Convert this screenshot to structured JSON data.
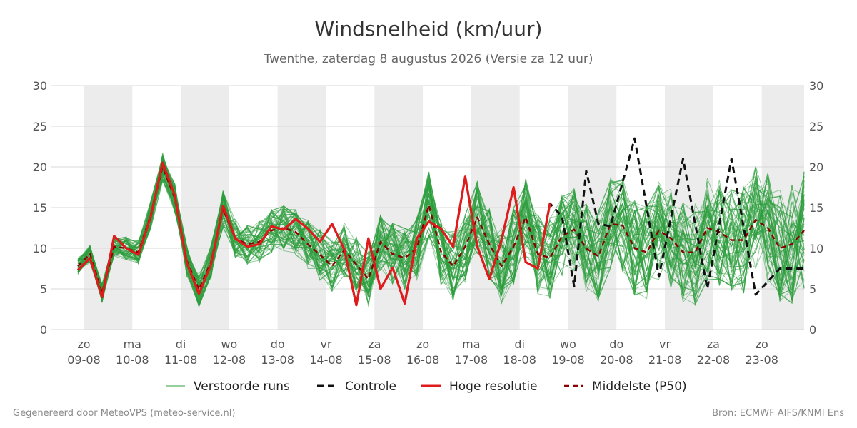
{
  "chart_data": {
    "type": "line",
    "title": "Windsnelheid (km/uur)",
    "subtitle": "Twenthe, zaterdag  8 augustus 2026 (Versie za 12 uur)",
    "ylim": [
      0,
      30
    ],
    "yticks": [
      0,
      5,
      10,
      15,
      20,
      25,
      30
    ],
    "grid": true,
    "x_start_date": "2026-08-08T21:00",
    "x_end_date": "2026-08-23T21:00",
    "day_labels": [
      {
        "day": "zo",
        "date": "09-08"
      },
      {
        "day": "ma",
        "date": "10-08"
      },
      {
        "day": "di",
        "date": "11-08"
      },
      {
        "day": "wo",
        "date": "12-08"
      },
      {
        "day": "do",
        "date": "13-08"
      },
      {
        "day": "vr",
        "date": "14-08"
      },
      {
        "day": "za",
        "date": "15-08"
      },
      {
        "day": "zo",
        "date": "16-08"
      },
      {
        "day": "ma",
        "date": "17-08"
      },
      {
        "day": "di",
        "date": "18-08"
      },
      {
        "day": "wo",
        "date": "19-08"
      },
      {
        "day": "do",
        "date": "20-08"
      },
      {
        "day": "vr",
        "date": "21-08"
      },
      {
        "day": "za",
        "date": "22-08"
      },
      {
        "day": "zo",
        "date": "23-08"
      }
    ],
    "night_shading": true,
    "legend": [
      "Verstoorde runs",
      "Controle",
      "Hoge resolutie",
      "Middelste (P50)"
    ],
    "legend_placement": "bottom",
    "colors": {
      "ensemble": "#2e9e3e",
      "control": "#111111",
      "hires": "#e01b1b",
      "median": "#8b0000",
      "shade": "#ececec",
      "grid": "#d9d9d9"
    },
    "series": [
      {
        "name": "Controle",
        "x": [
          "2026-08-08T21:00",
          "2026-08-09T03:00",
          "2026-08-09T09:00",
          "2026-08-09T15:00",
          "2026-08-09T21:00",
          "2026-08-10T03:00",
          "2026-08-10T09:00",
          "2026-08-10T15:00",
          "2026-08-10T21:00",
          "2026-08-11T03:00",
          "2026-08-11T09:00",
          "2026-08-11T15:00",
          "2026-08-11T21:00",
          "2026-08-12T03:00",
          "2026-08-12T09:00",
          "2026-08-12T15:00",
          "2026-08-12T21:00",
          "2026-08-13T03:00",
          "2026-08-13T09:00",
          "2026-08-13T15:00",
          "2026-08-13T21:00",
          "2026-08-14T03:00",
          "2026-08-14T09:00",
          "2026-08-14T15:00",
          "2026-08-14T21:00",
          "2026-08-15T03:00",
          "2026-08-15T09:00",
          "2026-08-15T15:00",
          "2026-08-15T21:00",
          "2026-08-16T03:00",
          "2026-08-16T09:00",
          "2026-08-16T15:00",
          "2026-08-16T21:00",
          "2026-08-17T03:00",
          "2026-08-17T09:00",
          "2026-08-17T15:00",
          "2026-08-17T21:00",
          "2026-08-18T03:00",
          "2026-08-18T09:00",
          "2026-08-18T15:00",
          "2026-08-18T21:00",
          "2026-08-19T03:00",
          "2026-08-19T09:00",
          "2026-08-19T15:00",
          "2026-08-19T21:00",
          "2026-08-20T09:00",
          "2026-08-20T21:00",
          "2026-08-21T09:00",
          "2026-08-21T21:00",
          "2026-08-22T09:00",
          "2026-08-22T21:00",
          "2026-08-23T09:00",
          "2026-08-23T21:00"
        ],
        "values": [
          7.3,
          8.8,
          4.0,
          11.5,
          10.0,
          9.2,
          13.8,
          20.5,
          16.5,
          8.2,
          4.4,
          8.0,
          15.2,
          11.2,
          10.2,
          10.5,
          12.7,
          12.3,
          13.6,
          12.4,
          10.8,
          13.0,
          9.9,
          3.0,
          11.2,
          5.0,
          7.6,
          3.2,
          11.2,
          13.3,
          12.4,
          10.2,
          18.8,
          10.2,
          6.2,
          11.0,
          17.5,
          8.3,
          7.5,
          15.5,
          13.9,
          5.3,
          19.5,
          13.0,
          12.7,
          23.5,
          6.5,
          21.0,
          5.0,
          21.0,
          4.3,
          7.5,
          7.5
        ]
      },
      {
        "name": "Hoge resolutie",
        "x": [
          "2026-08-08T21:00",
          "2026-08-09T03:00",
          "2026-08-09T09:00",
          "2026-08-09T15:00",
          "2026-08-09T21:00",
          "2026-08-10T03:00",
          "2026-08-10T09:00",
          "2026-08-10T15:00",
          "2026-08-10T21:00",
          "2026-08-11T03:00",
          "2026-08-11T09:00",
          "2026-08-11T15:00",
          "2026-08-11T21:00",
          "2026-08-12T03:00",
          "2026-08-12T09:00",
          "2026-08-12T15:00",
          "2026-08-12T21:00",
          "2026-08-13T03:00",
          "2026-08-13T09:00",
          "2026-08-13T15:00",
          "2026-08-13T21:00",
          "2026-08-14T03:00",
          "2026-08-14T09:00",
          "2026-08-14T15:00",
          "2026-08-14T21:00",
          "2026-08-15T03:00",
          "2026-08-15T09:00",
          "2026-08-15T15:00",
          "2026-08-15T21:00",
          "2026-08-16T03:00",
          "2026-08-16T09:00",
          "2026-08-16T15:00",
          "2026-08-16T21:00",
          "2026-08-17T03:00",
          "2026-08-17T09:00",
          "2026-08-17T15:00",
          "2026-08-17T21:00",
          "2026-08-18T03:00",
          "2026-08-18T09:00",
          "2026-08-18T15:00"
        ],
        "values": [
          7.3,
          8.8,
          4.0,
          11.5,
          10.0,
          9.2,
          13.8,
          20.5,
          16.5,
          8.2,
          4.4,
          8.0,
          15.2,
          11.2,
          10.2,
          10.5,
          12.7,
          12.3,
          13.6,
          12.4,
          10.8,
          13.0,
          9.9,
          3.0,
          11.2,
          5.0,
          7.6,
          3.2,
          11.2,
          13.3,
          12.4,
          10.2,
          18.8,
          10.2,
          6.2,
          11.0,
          17.5,
          8.3,
          7.5,
          15.5
        ]
      },
      {
        "name": "Middelste (P50)",
        "x": [
          "2026-08-08T21:00",
          "2026-08-09T03:00",
          "2026-08-09T09:00",
          "2026-08-09T15:00",
          "2026-08-09T21:00",
          "2026-08-10T03:00",
          "2026-08-10T09:00",
          "2026-08-10T15:00",
          "2026-08-10T21:00",
          "2026-08-11T03:00",
          "2026-08-11T09:00",
          "2026-08-11T15:00",
          "2026-08-11T21:00",
          "2026-08-12T03:00",
          "2026-08-12T09:00",
          "2026-08-12T15:00",
          "2026-08-12T21:00",
          "2026-08-13T03:00",
          "2026-08-13T09:00",
          "2026-08-13T15:00",
          "2026-08-13T21:00",
          "2026-08-14T03:00",
          "2026-08-14T09:00",
          "2026-08-14T15:00",
          "2026-08-14T21:00",
          "2026-08-15T03:00",
          "2026-08-15T09:00",
          "2026-08-15T15:00",
          "2026-08-15T21:00",
          "2026-08-16T03:00",
          "2026-08-16T09:00",
          "2026-08-16T15:00",
          "2026-08-16T21:00",
          "2026-08-17T03:00",
          "2026-08-17T09:00",
          "2026-08-17T15:00",
          "2026-08-17T21:00",
          "2026-08-18T03:00",
          "2026-08-18T09:00",
          "2026-08-18T15:00",
          "2026-08-18T21:00",
          "2026-08-19T03:00",
          "2026-08-19T09:00",
          "2026-08-19T15:00",
          "2026-08-19T21:00",
          "2026-08-20T03:00",
          "2026-08-20T09:00",
          "2026-08-20T15:00",
          "2026-08-20T21:00",
          "2026-08-21T03:00",
          "2026-08-21T09:00",
          "2026-08-21T15:00",
          "2026-08-21T21:00",
          "2026-08-22T03:00",
          "2026-08-22T09:00",
          "2026-08-22T15:00",
          "2026-08-22T21:00",
          "2026-08-23T03:00",
          "2026-08-23T09:00",
          "2026-08-23T15:00",
          "2026-08-23T21:00"
        ],
        "values": [
          7.8,
          9.3,
          4.5,
          10.2,
          10.0,
          9.5,
          14.0,
          20.0,
          16.2,
          8.5,
          4.9,
          8.3,
          14.8,
          11.2,
          10.5,
          10.8,
          12.2,
          12.5,
          12.0,
          10.5,
          9.2,
          7.8,
          9.8,
          8.0,
          6.2,
          10.8,
          9.3,
          8.8,
          10.0,
          15.3,
          9.6,
          7.8,
          10.2,
          13.8,
          10.5,
          7.8,
          10.2,
          13.8,
          9.3,
          8.8,
          11.5,
          12.3,
          10.0,
          9.0,
          13.0,
          12.8,
          10.0,
          9.5,
          12.2,
          11.2,
          9.5,
          9.5,
          12.5,
          12.0,
          11.0,
          11.0,
          13.5,
          12.5,
          10.0,
          10.5,
          12.2
        ]
      }
    ],
    "ensemble_runs": 50
  },
  "footer": {
    "left": "Gegenereerd door MeteoVPS (meteo-service.nl)",
    "right": "Bron: ECMWF AIFS/KNMI Ens"
  }
}
